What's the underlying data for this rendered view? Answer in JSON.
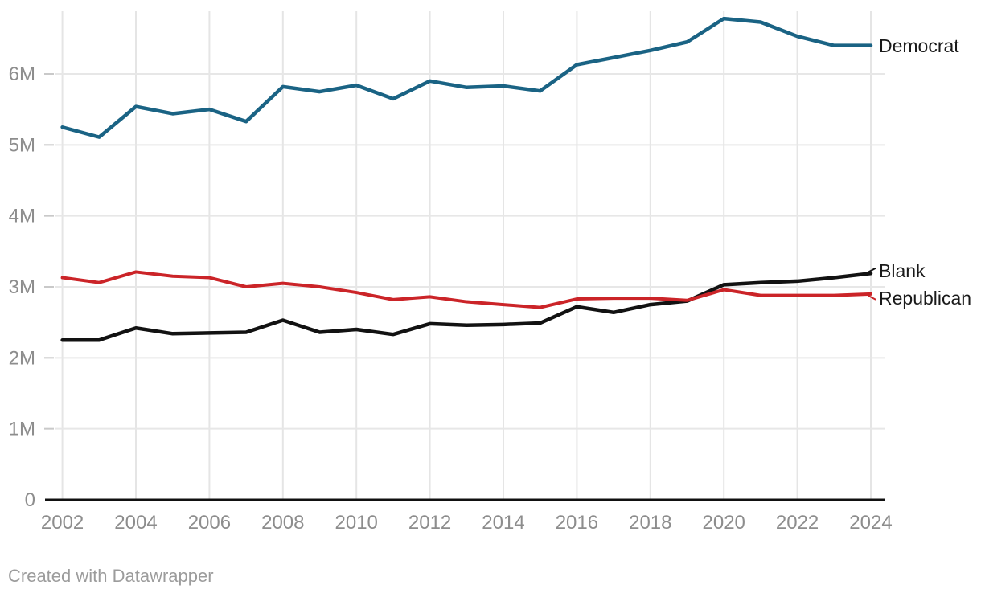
{
  "chart": {
    "attribution": "Created with Datawrapper"
  },
  "chart_data": {
    "type": "line",
    "title": "",
    "xlabel": "",
    "ylabel": "",
    "unit": "M (millions of registered voters)",
    "x": [
      2002,
      2003,
      2004,
      2005,
      2006,
      2007,
      2008,
      2009,
      2010,
      2011,
      2012,
      2013,
      2014,
      2015,
      2016,
      2017,
      2018,
      2019,
      2020,
      2021,
      2022,
      2023,
      2024
    ],
    "series": [
      {
        "name": "Democrat",
        "color": "#1a6384",
        "values": [
          5.25,
          5.11,
          5.54,
          5.44,
          5.5,
          5.33,
          5.82,
          5.75,
          5.84,
          5.65,
          5.9,
          5.81,
          5.83,
          5.76,
          6.13,
          6.23,
          6.33,
          6.45,
          6.78,
          6.73,
          6.53,
          6.4,
          6.4
        ]
      },
      {
        "name": "Blank",
        "color": "#121212",
        "values": [
          2.25,
          2.25,
          2.42,
          2.34,
          2.35,
          2.36,
          2.53,
          2.36,
          2.4,
          2.33,
          2.48,
          2.46,
          2.47,
          2.49,
          2.72,
          2.64,
          2.75,
          2.8,
          3.03,
          3.06,
          3.08,
          3.13,
          3.19
        ]
      },
      {
        "name": "Republican",
        "color": "#cb2428",
        "values": [
          3.13,
          3.06,
          3.21,
          3.15,
          3.13,
          3.0,
          3.05,
          3.0,
          2.92,
          2.82,
          2.86,
          2.79,
          2.75,
          2.71,
          2.83,
          2.84,
          2.84,
          2.81,
          2.96,
          2.88,
          2.88,
          2.88,
          2.9
        ]
      }
    ],
    "xticks": [
      2002,
      2004,
      2006,
      2008,
      2010,
      2012,
      2014,
      2016,
      2018,
      2020,
      2022,
      2024
    ],
    "yticks": [
      0,
      1,
      2,
      3,
      4,
      5,
      6
    ],
    "ytick_labels": [
      "0",
      "1M",
      "2M",
      "3M",
      "4M",
      "5M",
      "6M"
    ],
    "ylim": [
      0,
      6.9
    ],
    "xlim": [
      2002,
      2024
    ],
    "grid": true,
    "legend_position": "direct labels at right end of lines"
  }
}
